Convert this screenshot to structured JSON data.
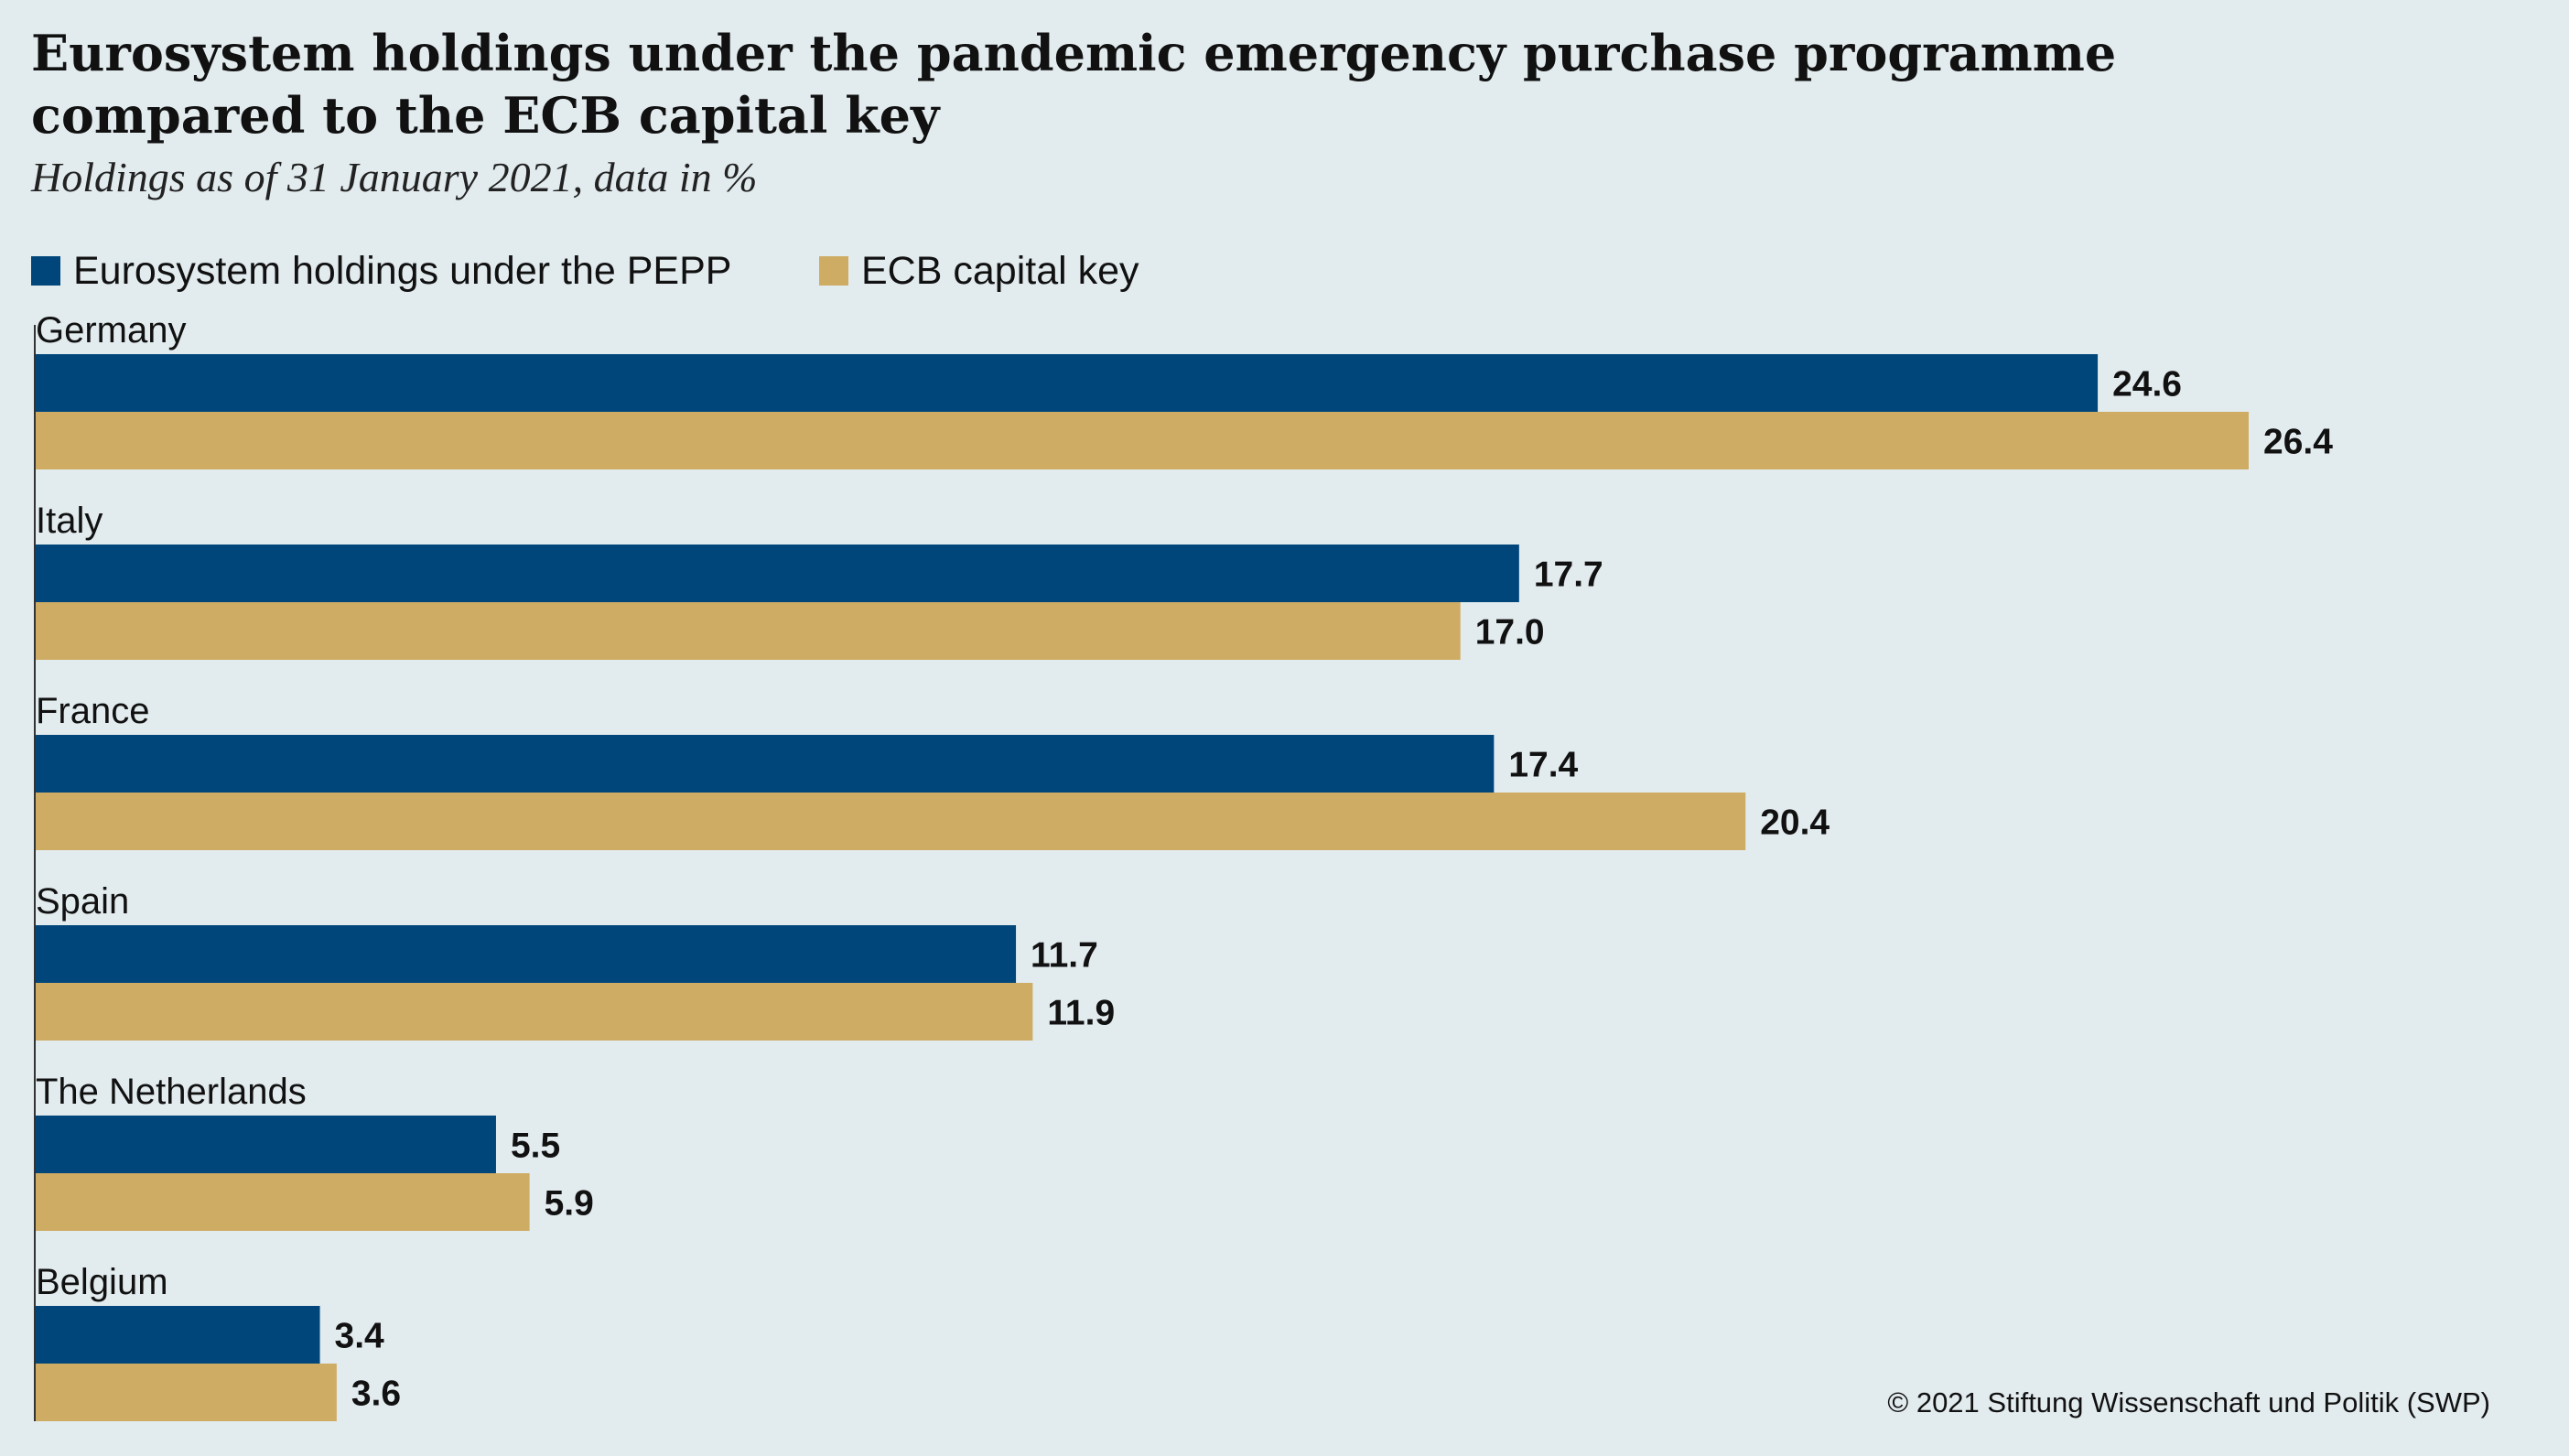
{
  "title": "Eurosystem holdings under the pandemic emergency purchase programme compared to the ECB capital key",
  "subtitle": "Holdings as of 31 January 2021, data in %",
  "copyright": "© 2021 Stiftung Wissenschaft und Politik (SWP)",
  "colors": {
    "background": "#e2ebee",
    "pepp": "#00467a",
    "capital_key": "#cfac64",
    "axis": "#333333"
  },
  "legend": [
    {
      "label": "Eurosystem holdings under the PEPP",
      "color": "#00467a"
    },
    {
      "label": "ECB capital key",
      "color": "#cfac64"
    }
  ],
  "chart_data": {
    "type": "bar",
    "orientation": "horizontal",
    "categories": [
      "Germany",
      "Italy",
      "France",
      "Spain",
      "The Netherlands",
      "Belgium"
    ],
    "series": [
      {
        "name": "Eurosystem holdings under the PEPP",
        "values": [
          24.6,
          17.7,
          17.4,
          11.7,
          5.5,
          3.4
        ],
        "value_labels": [
          "24.6",
          "17.7",
          "17.4",
          "11.7",
          "5.5",
          "3.4"
        ]
      },
      {
        "name": "ECB capital key",
        "values": [
          26.4,
          17.0,
          20.4,
          11.9,
          5.9,
          3.6
        ],
        "value_labels": [
          "26.4",
          "17.0",
          "20.4",
          "11.9",
          "5.9",
          "3.6"
        ]
      }
    ],
    "xlim": [
      0,
      26.4
    ],
    "grid": false,
    "legend_position": "top-left"
  }
}
